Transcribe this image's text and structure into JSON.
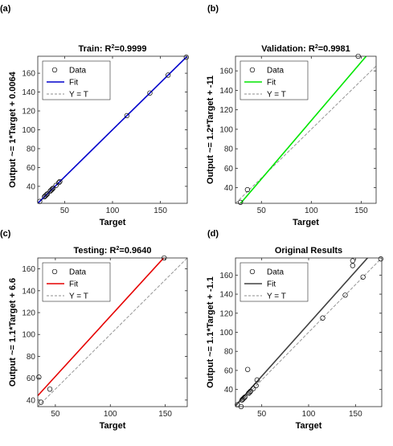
{
  "colors": {
    "data_marker": "#000000",
    "identity": "#8c8c8c",
    "axes": "#262626"
  },
  "chart_data": [
    {
      "panel_label": "(a)",
      "type": "scatter",
      "title_prefix": "Train: R",
      "title_sup": "2",
      "title_suffix": "=0.9999",
      "xlabel": "Target",
      "ylabel": "Output ~= 1*Target + 0.0064",
      "xlim": [
        22,
        178
      ],
      "ylim": [
        22,
        178
      ],
      "xticks": [
        50,
        100,
        150
      ],
      "yticks": [
        40,
        60,
        80,
        100,
        120,
        140,
        160
      ],
      "legend": {
        "position": "top-left",
        "entries": [
          "Data",
          "Fit",
          "Y = T"
        ]
      },
      "fit": {
        "slope": 1,
        "intercept": 0.0064,
        "color": "#0000cc"
      },
      "points": [
        [
          24,
          24
        ],
        [
          29,
          29
        ],
        [
          30,
          30
        ],
        [
          31,
          31
        ],
        [
          32,
          32
        ],
        [
          35,
          35
        ],
        [
          36,
          36
        ],
        [
          37,
          37
        ],
        [
          38,
          38
        ],
        [
          41,
          41
        ],
        [
          44,
          44
        ],
        [
          45,
          45
        ],
        [
          115,
          115
        ],
        [
          139,
          139
        ],
        [
          158,
          158
        ],
        [
          177,
          177
        ]
      ]
    },
    {
      "panel_label": "(b)",
      "type": "scatter",
      "title_prefix": "Validation: R",
      "title_sup": "2",
      "title_suffix": "=0.9981",
      "xlabel": "Target",
      "ylabel": "Output ~= 1.2*Target + -11",
      "xlim": [
        24,
        165
      ],
      "ylim": [
        24,
        175
      ],
      "xticks": [
        50,
        100,
        150
      ],
      "yticks": [
        40,
        60,
        80,
        100,
        120,
        140,
        160
      ],
      "legend": {
        "position": "top-left",
        "entries": [
          "Data",
          "Fit",
          "Y = T"
        ]
      },
      "fit": {
        "slope": 1.2,
        "intercept": -11,
        "color": "#00e600"
      },
      "points": [
        [
          29,
          25
        ],
        [
          36,
          38
        ],
        [
          147,
          175
        ]
      ]
    },
    {
      "panel_label": "(c)",
      "type": "scatter",
      "title_prefix": "Testing: R",
      "title_sup": "2",
      "title_suffix": "=0.9640",
      "xlabel": "Target",
      "ylabel": "Output ~= 1.1*Target + 6.6",
      "xlim": [
        34,
        170
      ],
      "ylim": [
        34,
        170
      ],
      "xticks": [
        50,
        100,
        150
      ],
      "yticks": [
        40,
        60,
        80,
        100,
        120,
        140,
        160
      ],
      "legend": {
        "position": "top-left",
        "entries": [
          "Data",
          "Fit",
          "Y = T"
        ]
      },
      "fit": {
        "slope": 1.1,
        "intercept": 6.6,
        "color": "#e60000"
      },
      "points": [
        [
          35,
          61
        ],
        [
          37,
          38
        ],
        [
          45,
          50
        ],
        [
          149,
          170
        ]
      ]
    },
    {
      "panel_label": "(d)",
      "type": "scatter",
      "title_prefix": "Original Results",
      "title_sup": "",
      "title_suffix": "",
      "xlabel": "Target",
      "ylabel": "Output ~= 1.1*Target + -1.1",
      "xlim": [
        22,
        178
      ],
      "ylim": [
        22,
        178
      ],
      "xticks": [
        50,
        100,
        150
      ],
      "yticks": [
        40,
        60,
        80,
        100,
        120,
        140,
        160
      ],
      "legend": {
        "position": "top-left",
        "entries": [
          "Data",
          "Fit",
          "Y = T"
        ]
      },
      "fit": {
        "slope": 1.1,
        "intercept": -1.1,
        "color": "#404040"
      },
      "points": [
        [
          24,
          24
        ],
        [
          28,
          22
        ],
        [
          29,
          29
        ],
        [
          30,
          30
        ],
        [
          31,
          31
        ],
        [
          32,
          32
        ],
        [
          35,
          61
        ],
        [
          36,
          36
        ],
        [
          37,
          37
        ],
        [
          38,
          38
        ],
        [
          41,
          41
        ],
        [
          44,
          44
        ],
        [
          45,
          50
        ],
        [
          115,
          115
        ],
        [
          139,
          139
        ],
        [
          147,
          170
        ],
        [
          147,
          175
        ],
        [
          158,
          158
        ],
        [
          177,
          177
        ]
      ]
    }
  ]
}
